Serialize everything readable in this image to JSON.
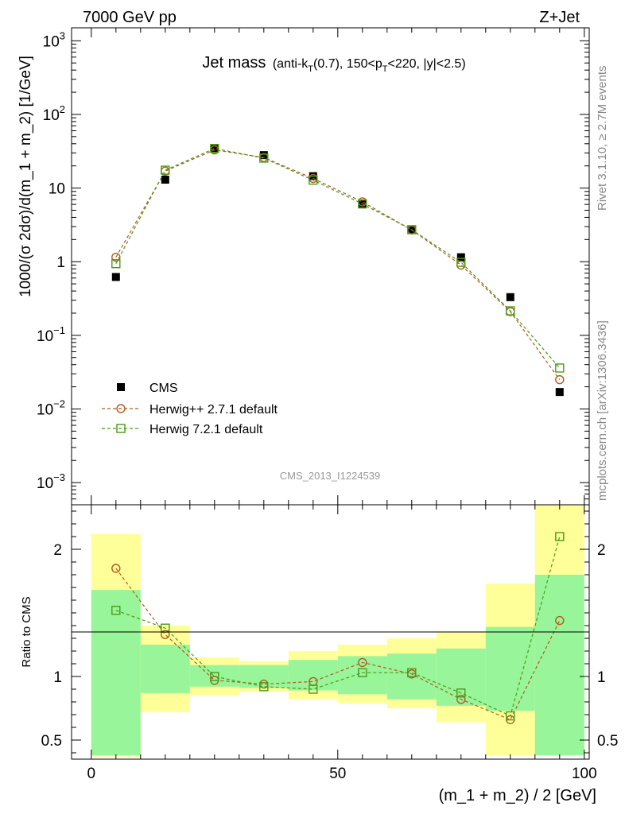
{
  "header": {
    "left": "7000 GeV pp",
    "right": "Z+Jet"
  },
  "side_labels": {
    "rivet": "Rivet 3.1.10, ≥ 2.7M events",
    "mcplots": "mcplots.cern.ch [arXiv:1306.3436]"
  },
  "chart_data": [
    {
      "type": "scatter",
      "title_main": "Jet mass",
      "title_detail": "(anti-kT(0.7), 150<pT<220, |y|<2.5)",
      "ylabel": "1000/(σ 2dσ)/d(m_1 + m_2) [1/GeV]",
      "yscale": "log",
      "ylim": [
        0.0005,
        1500
      ],
      "xlim": [
        -4,
        101
      ],
      "analysis_label": "CMS_2013_I1224539",
      "y_ticks": [
        {
          "base": "10",
          "exp": "3",
          "v": 1000
        },
        {
          "base": "10",
          "exp": "2",
          "v": 100
        },
        {
          "base": "10",
          "exp": "",
          "v": 10
        },
        {
          "base": "1",
          "exp": "",
          "v": 1
        },
        {
          "base": "10",
          "exp": "−1",
          "v": 0.1
        },
        {
          "base": "10",
          "exp": "−2",
          "v": 0.01
        },
        {
          "base": "10",
          "exp": "−3",
          "v": 0.001
        }
      ],
      "series": [
        {
          "name": "CMS",
          "color": "#000000",
          "marker": "filled-square",
          "x": [
            5,
            15,
            25,
            35,
            45,
            55,
            65,
            75,
            85,
            95
          ],
          "y": [
            0.62,
            13.0,
            34.0,
            28.0,
            14.5,
            6.0,
            2.7,
            1.15,
            0.33,
            0.017
          ]
        },
        {
          "name": "Herwig++ 2.7.1 default",
          "color": "#b35a1f",
          "marker": "open-circle",
          "x": [
            5,
            15,
            25,
            35,
            45,
            55,
            65,
            75,
            85,
            95
          ],
          "y": [
            1.15,
            17.0,
            33.0,
            26.0,
            13.5,
            6.5,
            2.7,
            0.9,
            0.21,
            0.025
          ]
        },
        {
          "name": "Herwig 7.2.1 default",
          "color": "#4a9a1a",
          "marker": "open-square",
          "x": [
            5,
            15,
            25,
            35,
            45,
            55,
            65,
            75,
            85,
            95
          ],
          "y": [
            0.94,
            17.5,
            34.5,
            25.5,
            12.8,
            6.1,
            2.72,
            0.98,
            0.215,
            0.036
          ]
        }
      ]
    },
    {
      "type": "line",
      "ylabel": "Ratio to CMS",
      "xlabel": "(m_1 + m_2) / 2 [GeV]",
      "ylim": [
        0.35,
        2.35
      ],
      "xlim": [
        -4,
        101
      ],
      "x_ticks": [
        0,
        50,
        100
      ],
      "y_ticks": [
        0.5,
        1,
        2
      ],
      "bands": {
        "edges": [
          0,
          10,
          20,
          30,
          40,
          50,
          60,
          70,
          80,
          90,
          100
        ],
        "yellow_low": [
          0.37,
          0.72,
          0.85,
          0.88,
          0.82,
          0.79,
          0.75,
          0.64,
          0.38,
          0.38
        ],
        "yellow_high": [
          2.12,
          1.4,
          1.15,
          1.12,
          1.2,
          1.25,
          1.3,
          1.35,
          1.73,
          2.35
        ],
        "green_low": [
          0.38,
          0.87,
          0.92,
          0.91,
          0.89,
          0.86,
          0.82,
          0.77,
          0.73,
          0.38
        ],
        "green_high": [
          1.68,
          1.25,
          1.09,
          1.09,
          1.13,
          1.16,
          1.18,
          1.22,
          1.39,
          1.8
        ]
      },
      "series": [
        {
          "name": "Herwig++ 2.7.1 default",
          "color": "#b35a1f",
          "marker": "open-circle",
          "x": [
            5,
            15,
            25,
            35,
            45,
            55,
            65,
            75,
            85,
            95
          ],
          "y": [
            1.85,
            1.33,
            0.97,
            0.94,
            0.96,
            1.11,
            1.02,
            0.82,
            0.66,
            1.44
          ]
        },
        {
          "name": "Herwig 7.2.1 default",
          "color": "#4a9a1a",
          "marker": "open-square",
          "x": [
            5,
            15,
            25,
            35,
            45,
            55,
            65,
            75,
            85,
            95
          ],
          "y": [
            1.52,
            1.38,
            1.0,
            0.92,
            0.9,
            1.03,
            1.03,
            0.87,
            0.69,
            2.1
          ]
        }
      ]
    }
  ]
}
